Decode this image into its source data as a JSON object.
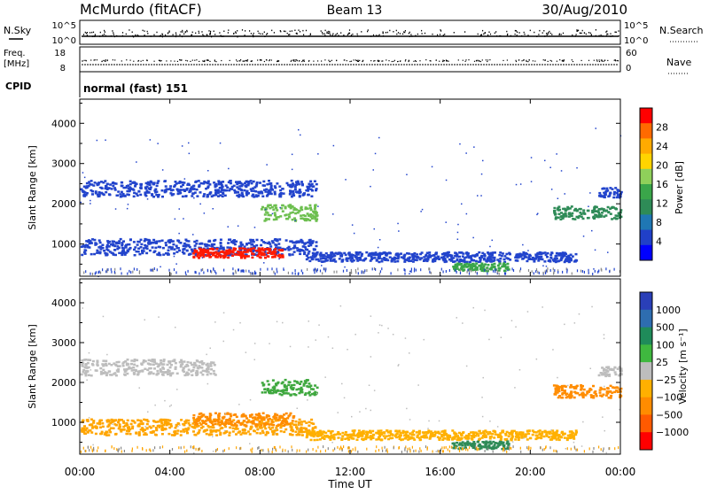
{
  "header": {
    "station": "McMurdo (fitACF)",
    "beam": "Beam 13",
    "date": "30/Aug/2010"
  },
  "params_panel": {
    "nsky_label": "N.Sky",
    "nsky_ticks": [
      "10^5",
      "10^0"
    ],
    "nsearch_label": "N.Search",
    "nsearch_ticks": [
      "10^5",
      "10^0"
    ],
    "freq_label_1": "Freq.",
    "freq_label_2": "[MHz]",
    "freq_ticks": [
      "18",
      "8"
    ],
    "nave_label": "Nave",
    "nave_ticks": [
      "60",
      "0"
    ],
    "cpid_label": "CPID",
    "cpid_value": "normal (fast) 151"
  },
  "power_panel": {
    "ylabel": "Slant Range [km]",
    "colorbar_label": "Power [dB]",
    "colorbar_ticks": [
      "28",
      "24",
      "20",
      "16",
      "12",
      "8",
      "4"
    ],
    "colorbar_colors": [
      "#ff0000",
      "#ff6a00",
      "#ffaa00",
      "#ffd400",
      "#8fd05a",
      "#3aa64a",
      "#2e8b57",
      "#1f77b4",
      "#2040c8",
      "#0000ff"
    ]
  },
  "velocity_panel": {
    "ylabel": "Slant Range [km]",
    "colorbar_label": "Velocity [m s⁻¹]",
    "colorbar_ticks": [
      "1000",
      "500",
      "100",
      "25",
      "−25",
      "−100",
      "−500",
      "−1000"
    ],
    "colorbar_colors": [
      "#2a3fb8",
      "#2e6db0",
      "#1f8b5a",
      "#3fb83f",
      "#bdbdbd",
      "#ffb000",
      "#ff8c00",
      "#ff5a00",
      "#ff0000"
    ]
  },
  "chart_data": {
    "type": "heatmap",
    "xlabel": "Time UT",
    "xticks": [
      "00:00",
      "04:00",
      "08:00",
      "12:00",
      "16:00",
      "20:00",
      "00:00"
    ],
    "xlim_hours": [
      0,
      24
    ],
    "ylim_km": [
      200,
      4600
    ],
    "yticks": [
      1000,
      2000,
      3000,
      4000
    ],
    "power_scatter_bands": [
      {
        "t_start": 0.0,
        "t_end": 10.5,
        "r_center": 2400,
        "r_width": 250,
        "color": "#2244cc"
      },
      {
        "t_start": 0.0,
        "t_end": 10.5,
        "r_center": 950,
        "r_width": 250,
        "color": "#2244cc"
      },
      {
        "t_start": 5.0,
        "t_end": 9.0,
        "r_center": 800,
        "r_width": 150,
        "color": "#ff1a00"
      },
      {
        "t_start": 8.0,
        "t_end": 10.5,
        "r_center": 1800,
        "r_width": 250,
        "color": "#6dbf4f"
      },
      {
        "t_start": 10.0,
        "t_end": 22.0,
        "r_center": 700,
        "r_width": 150,
        "color": "#2244cc"
      },
      {
        "t_start": 16.5,
        "t_end": 19.0,
        "r_center": 450,
        "r_width": 120,
        "color": "#3aa64a"
      },
      {
        "t_start": 21.0,
        "t_end": 24.0,
        "r_center": 1800,
        "r_width": 200,
        "color": "#2e8b57"
      },
      {
        "t_start": 23.0,
        "t_end": 24.0,
        "r_center": 2300,
        "r_width": 150,
        "color": "#2244cc"
      }
    ],
    "velocity_scatter_bands": [
      {
        "t_start": 0.0,
        "t_end": 6.0,
        "r_center": 2400,
        "r_width": 250,
        "color": "#bdbdbd"
      },
      {
        "t_start": 0.0,
        "t_end": 10.5,
        "r_center": 900,
        "r_width": 250,
        "color": "#ffa500"
      },
      {
        "t_start": 5.0,
        "t_end": 9.5,
        "r_center": 1100,
        "r_width": 200,
        "color": "#ff8c00"
      },
      {
        "t_start": 8.0,
        "t_end": 10.5,
        "r_center": 1900,
        "r_width": 250,
        "color": "#3fa83f"
      },
      {
        "t_start": 10.0,
        "t_end": 22.0,
        "r_center": 700,
        "r_width": 150,
        "color": "#ffb000"
      },
      {
        "t_start": 16.5,
        "t_end": 19.0,
        "r_center": 450,
        "r_width": 120,
        "color": "#2e8b57"
      },
      {
        "t_start": 21.0,
        "t_end": 24.0,
        "r_center": 1800,
        "r_width": 200,
        "color": "#ff8c00"
      },
      {
        "t_start": 23.0,
        "t_end": 24.0,
        "r_center": 2300,
        "r_width": 150,
        "color": "#bdbdbd"
      }
    ]
  }
}
